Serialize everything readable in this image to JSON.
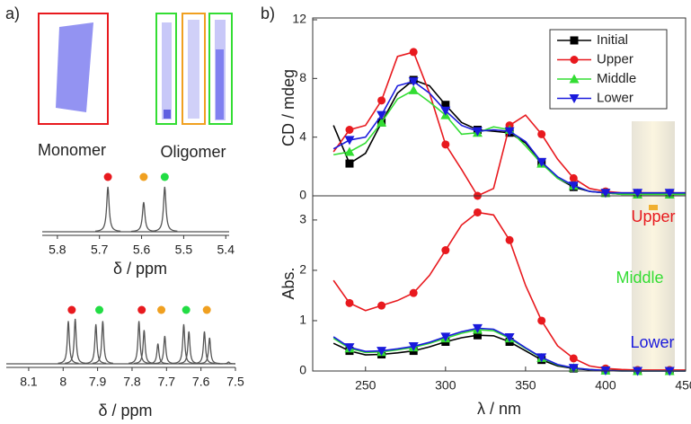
{
  "panel_labels": [
    "a)",
    "b)"
  ],
  "schematic": {
    "monomer_label": "Monomer",
    "oligomer_label": "Oligomer"
  },
  "chart_data": [
    {
      "type": "spectrum",
      "xlabel": "δ / ppm",
      "xlim": [
        5.836,
        5.392
      ],
      "xticks": [
        5.8,
        5.7,
        5.6,
        5.5,
        5.4
      ],
      "color": "#555555",
      "peaks": [
        {
          "x": 5.68,
          "height": 1.0
        },
        {
          "x": 5.595,
          "height": 0.66
        },
        {
          "x": 5.545,
          "height": 1.0
        }
      ],
      "markers": [
        {
          "x": 5.68,
          "color": "#e8191e"
        },
        {
          "x": 5.595,
          "color": "#f0a020"
        },
        {
          "x": 5.545,
          "color": "#22dd44"
        }
      ]
    },
    {
      "type": "spectrum",
      "xlabel": "δ / ppm",
      "xlim": [
        8.165,
        7.5
      ],
      "xticks": [
        8.1,
        8.0,
        7.9,
        7.8,
        7.7,
        7.6,
        7.5
      ],
      "color": "#555555",
      "peaks": [
        {
          "x": 7.985,
          "height": 0.95
        },
        {
          "x": 7.965,
          "height": 1.0
        },
        {
          "x": 7.905,
          "height": 0.88
        },
        {
          "x": 7.885,
          "height": 0.95
        },
        {
          "x": 7.78,
          "height": 0.95
        },
        {
          "x": 7.765,
          "height": 0.75
        },
        {
          "x": 7.725,
          "height": 0.45
        },
        {
          "x": 7.705,
          "height": 0.62
        },
        {
          "x": 7.65,
          "height": 0.88
        },
        {
          "x": 7.635,
          "height": 0.72
        },
        {
          "x": 7.59,
          "height": 0.72
        },
        {
          "x": 7.575,
          "height": 0.58
        },
        {
          "x": 7.52,
          "height": 0.04
        }
      ],
      "markers": [
        {
          "x": 7.975,
          "color": "#e8191e"
        },
        {
          "x": 7.895,
          "color": "#22dd44"
        },
        {
          "x": 7.772,
          "color": "#e8191e"
        },
        {
          "x": 7.715,
          "color": "#f0a020"
        },
        {
          "x": 7.643,
          "color": "#22dd44"
        },
        {
          "x": 7.583,
          "color": "#f0a020"
        }
      ]
    },
    {
      "type": "line",
      "ylabel": "CD / mdeg",
      "xlim": [
        217,
        450
      ],
      "ylim": [
        0,
        12
      ],
      "yticks": [
        0,
        4,
        8,
        12
      ],
      "legend": "upper right",
      "x": [
        230,
        240,
        250,
        260,
        270,
        280,
        290,
        300,
        310,
        320,
        330,
        340,
        350,
        360,
        370,
        380,
        390,
        400,
        410,
        420,
        430,
        440,
        450
      ],
      "series": [
        {
          "name": "Initial",
          "color": "#000000",
          "marker": "square",
          "values": [
            4.8,
            2.2,
            2.9,
            5.0,
            7.0,
            7.9,
            7.5,
            6.2,
            5.0,
            4.5,
            4.4,
            4.3,
            3.6,
            2.3,
            1.2,
            0.6,
            0.3,
            0.2,
            0.1,
            0.1,
            0.1,
            0.1,
            0.1
          ]
        },
        {
          "name": "Upper",
          "color": "#e8191e",
          "marker": "circle",
          "values": [
            3.0,
            4.5,
            4.8,
            6.5,
            9.5,
            9.8,
            7.0,
            3.5,
            1.8,
            0.0,
            0.5,
            4.8,
            5.5,
            4.2,
            2.5,
            1.2,
            0.5,
            0.3,
            0.2,
            0.2,
            0.2,
            0.2,
            0.2
          ]
        },
        {
          "name": "Middle",
          "color": "#33dd33",
          "marker": "triangle-up",
          "values": [
            2.8,
            3.0,
            3.6,
            5.0,
            6.6,
            7.2,
            6.4,
            5.5,
            4.2,
            4.3,
            4.7,
            4.5,
            3.4,
            2.2,
            1.2,
            0.7,
            0.3,
            0.2,
            0.1,
            0.1,
            0.1,
            0.1,
            0.1
          ]
        },
        {
          "name": "Lower",
          "color": "#1a1adc",
          "marker": "triangle-down",
          "values": [
            3.2,
            3.8,
            4.0,
            5.5,
            7.5,
            7.8,
            7.0,
            5.8,
            4.8,
            4.4,
            4.5,
            4.4,
            3.7,
            2.3,
            1.3,
            0.7,
            0.3,
            0.2,
            0.2,
            0.2,
            0.2,
            0.2,
            0.2
          ]
        }
      ]
    },
    {
      "type": "line",
      "ylabel": "Abs.",
      "xlabel": "λ / nm",
      "xlim": [
        217,
        450
      ],
      "ylim": [
        0,
        3.48
      ],
      "yticks": [
        0,
        1,
        2,
        3
      ],
      "xticks": [
        250,
        300,
        350,
        400,
        450
      ],
      "x": [
        230,
        240,
        250,
        260,
        270,
        280,
        290,
        300,
        310,
        320,
        330,
        340,
        350,
        360,
        370,
        380,
        390,
        400,
        410,
        420,
        430,
        440,
        450
      ],
      "series": [
        {
          "color": "#000000",
          "marker": "square",
          "values": [
            0.55,
            0.4,
            0.32,
            0.33,
            0.36,
            0.4,
            0.48,
            0.58,
            0.66,
            0.71,
            0.7,
            0.58,
            0.4,
            0.22,
            0.1,
            0.05,
            0.02,
            0.01,
            0.01,
            0,
            0,
            0,
            0
          ]
        },
        {
          "color": "#e8191e",
          "marker": "circle",
          "values": [
            1.8,
            1.35,
            1.2,
            1.3,
            1.4,
            1.55,
            1.9,
            2.4,
            2.9,
            3.15,
            3.1,
            2.6,
            1.7,
            1.0,
            0.5,
            0.25,
            0.1,
            0.05,
            0.03,
            0.02,
            0.02,
            0.02,
            0.02
          ]
        },
        {
          "color": "#33dd33",
          "marker": "triangle-up",
          "values": [
            0.65,
            0.45,
            0.37,
            0.38,
            0.42,
            0.47,
            0.55,
            0.65,
            0.75,
            0.82,
            0.8,
            0.65,
            0.45,
            0.26,
            0.12,
            0.06,
            0.03,
            0.01,
            0,
            0,
            0,
            0,
            0
          ]
        },
        {
          "color": "#1a1adc",
          "marker": "triangle-down",
          "values": [
            0.68,
            0.47,
            0.39,
            0.4,
            0.44,
            0.49,
            0.57,
            0.68,
            0.78,
            0.85,
            0.83,
            0.67,
            0.46,
            0.27,
            0.13,
            0.06,
            0.03,
            0.01,
            0,
            0,
            0,
            0,
            0
          ]
        }
      ],
      "annotations": [
        {
          "text": "Upper",
          "color": "#e8191e"
        },
        {
          "text": "Middle",
          "color": "#33dd33"
        },
        {
          "text": "Lower",
          "color": "#1a1adc"
        }
      ]
    }
  ]
}
